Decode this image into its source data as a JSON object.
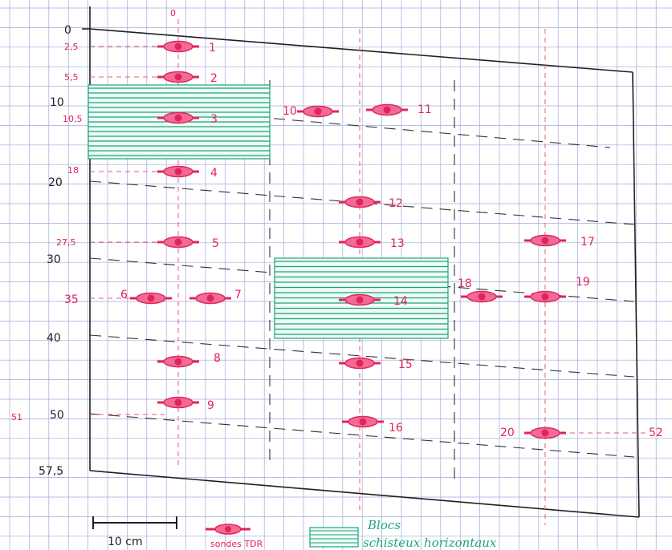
{
  "colors": {
    "grid": "#9fa8df",
    "ink": "#1f1f1f",
    "probe": "#e0245e",
    "hatch": "#1aa57a"
  },
  "axis_labels": [
    "0",
    "10",
    "20",
    "30",
    "40",
    "50",
    "57,5"
  ],
  "depth_labels": [
    "2,5",
    "5,5",
    "10,5",
    "18",
    "27,5",
    "35",
    "51",
    "52"
  ],
  "top_label": "0",
  "probes": [
    {
      "label": "1"
    },
    {
      "label": "2"
    },
    {
      "label": "3"
    },
    {
      "label": "4"
    },
    {
      "label": "5"
    },
    {
      "label": "6"
    },
    {
      "label": "7"
    },
    {
      "label": "8"
    },
    {
      "label": "9"
    },
    {
      "label": "10"
    },
    {
      "label": "11"
    },
    {
      "label": "12"
    },
    {
      "label": "13"
    },
    {
      "label": "14"
    },
    {
      "label": "15"
    },
    {
      "label": "16"
    },
    {
      "label": "17"
    },
    {
      "label": "18"
    },
    {
      "label": "19"
    },
    {
      "label": "20"
    }
  ],
  "legend": {
    "scale": "10 cm",
    "probe_text": "sondes TDR",
    "hatch_text_1": "Blocs",
    "hatch_text_2": "schisteux horizontaux"
  }
}
